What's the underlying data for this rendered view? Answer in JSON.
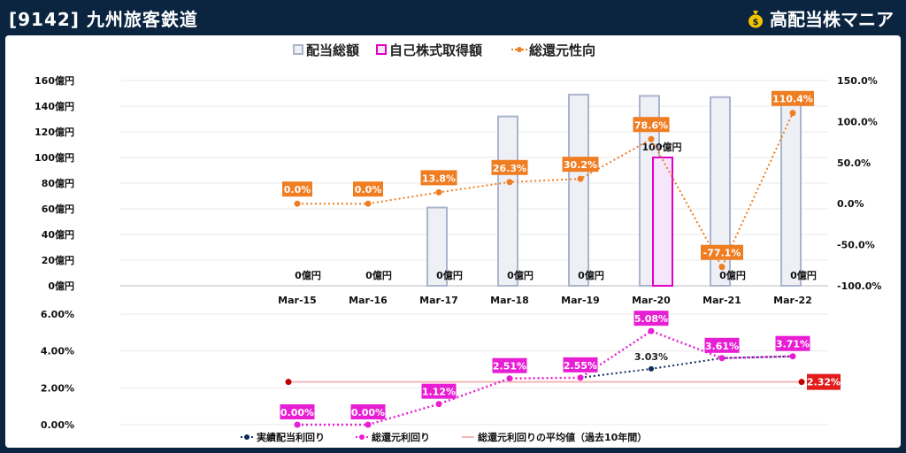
{
  "header": {
    "title": "[9142] 九州旅客鉄道",
    "brand": "高配当株マニア",
    "brand_icon": "money-bag-icon"
  },
  "colors": {
    "bar": "#eef0f6",
    "bar_border": "#aab4cc",
    "buyback": "#f6e6fb",
    "buyback_border": "#e000c8",
    "total_return": "#ef7d22",
    "actual_yield": "#0b2a5e",
    "total_yield": "#e81ed4",
    "avg_line": "#f2b8b8",
    "avg_label": "#e21b1b"
  },
  "chart_data": [
    {
      "type": "bar",
      "categories": [
        "Mar-15",
        "Mar-16",
        "Mar-17",
        "Mar-18",
        "Mar-19",
        "Mar-20",
        "Mar-21",
        "Mar-22"
      ],
      "legend": [
        "配当総額",
        "自己株式取得額",
        "総還元性向"
      ],
      "y_left": {
        "ticks": [
          "0億円",
          "20億円",
          "40億円",
          "60億円",
          "80億円",
          "100億円",
          "120億円",
          "140億円",
          "160億円"
        ],
        "range": [
          0,
          160
        ]
      },
      "y_right": {
        "ticks": [
          "-100.0%",
          "-50.0%",
          "0.0%",
          "50.0%",
          "100.0%",
          "150.0%"
        ],
        "range": [
          -100,
          150
        ]
      },
      "series": [
        {
          "name": "配当総額",
          "values": [
            0,
            0,
            61,
            132,
            149,
            148,
            147,
            147
          ]
        },
        {
          "name": "自己株式取得額",
          "values": [
            0,
            0,
            0,
            0,
            0,
            100,
            0,
            0
          ],
          "labels": [
            "0億円",
            "0億円",
            "0億円",
            "0億円",
            "0億円",
            "100億円",
            "0億円",
            "0億円"
          ]
        },
        {
          "name": "総還元性向",
          "values": [
            0.0,
            0.0,
            13.8,
            26.3,
            30.2,
            78.6,
            -77.1,
            110.4
          ],
          "labels": [
            "0.0%",
            "0.0%",
            "13.8%",
            "26.3%",
            "30.2%",
            "78.6%",
            "-77.1%",
            "110.4%"
          ]
        }
      ]
    },
    {
      "type": "line",
      "categories": [
        "Mar-15",
        "Mar-16",
        "Mar-17",
        "Mar-18",
        "Mar-19",
        "Mar-20",
        "Mar-21",
        "Mar-22"
      ],
      "legend": [
        "実績配当利回り",
        "総還元利回り",
        "総還元利回りの平均値（過去10年間）"
      ],
      "y": {
        "ticks": [
          "0.00%",
          "2.00%",
          "4.00%",
          "6.00%"
        ],
        "range": [
          0,
          6
        ]
      },
      "series": [
        {
          "name": "実績配当利回り",
          "values": [
            null,
            null,
            null,
            null,
            2.55,
            3.03,
            3.61,
            3.71
          ],
          "labels": [
            "",
            "",
            "",
            "",
            "",
            "3.03%",
            "",
            ""
          ]
        },
        {
          "name": "総還元利回り",
          "values": [
            0.0,
            0.0,
            1.12,
            2.51,
            2.55,
            5.08,
            3.61,
            3.71
          ],
          "labels": [
            "0.00%",
            "0.00%",
            "1.12%",
            "2.51%",
            "2.55%",
            "5.08%",
            "3.61%",
            "3.71%"
          ]
        },
        {
          "name": "総還元利回りの平均値（過去10年間）",
          "value": 2.32,
          "label": "2.32%"
        }
      ]
    }
  ]
}
